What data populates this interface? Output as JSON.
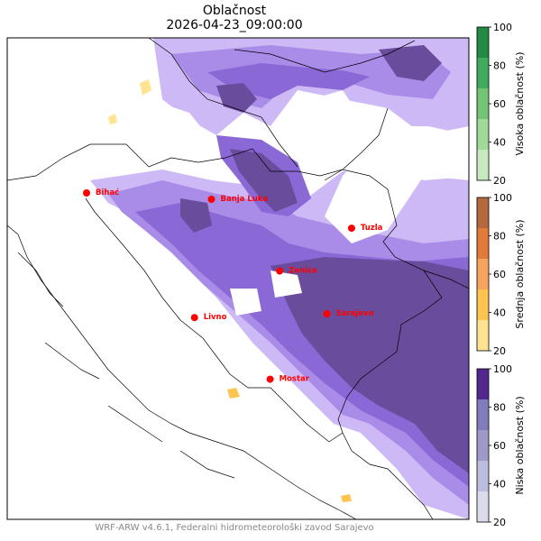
{
  "header": {
    "title": "Oblačnost",
    "datetime": "2026-04-23_09:00:00"
  },
  "footer": {
    "credit": "WRF-ARW v4.6.1, Federalni hidrometeorološki zavod Sarajevo"
  },
  "colorbars": [
    {
      "label": "Visoka oblačnost (%)",
      "ticks": [
        "20",
        "40",
        "60",
        "80",
        "100"
      ],
      "colors": [
        "#c7e9c0",
        "#a1d99b",
        "#74c476",
        "#41ab5d",
        "#238b45"
      ]
    },
    {
      "label": "Srednja oblačnost (%)",
      "ticks": [
        "20",
        "40",
        "60",
        "80",
        "100"
      ],
      "colors": [
        "#fee391",
        "#fec44f",
        "#f5a35e",
        "#e07b39",
        "#b5693f"
      ]
    },
    {
      "label": "Niska oblačnost (%)",
      "ticks": [
        "20",
        "40",
        "60",
        "80",
        "100"
      ],
      "colors": [
        "#dadaeb",
        "#bcbddc",
        "#9e9ac8",
        "#807dba",
        "#54278f"
      ]
    }
  ],
  "cities": [
    {
      "name": "Bihać",
      "lon": 15.87,
      "lat": 44.82
    },
    {
      "name": "Banja Luka",
      "lon": 17.19,
      "lat": 44.77
    },
    {
      "name": "Tuzla",
      "lon": 18.67,
      "lat": 44.54
    },
    {
      "name": "Zenica",
      "lon": 17.91,
      "lat": 44.2
    },
    {
      "name": "Sarajevo",
      "lon": 18.41,
      "lat": 43.86
    },
    {
      "name": "Livno",
      "lon": 17.01,
      "lat": 43.83
    },
    {
      "name": "Mostar",
      "lon": 17.81,
      "lat": 43.34
    }
  ]
}
